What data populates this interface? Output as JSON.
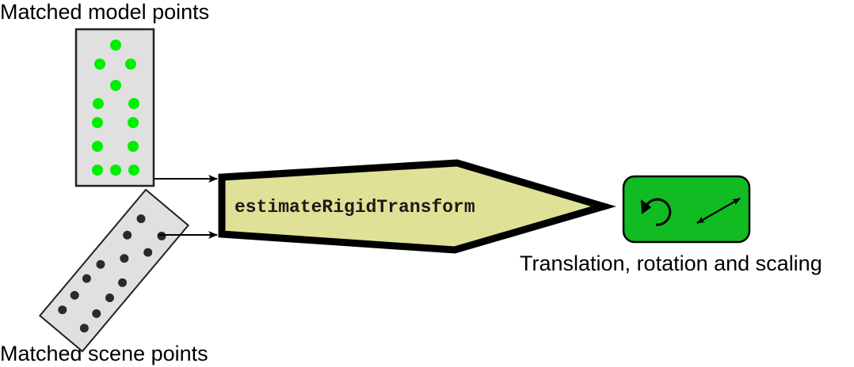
{
  "labels": {
    "model_points": "Matched model points",
    "scene_points": "Matched scene points",
    "function_name": "estimateRigidTransform",
    "output": "Translation, rotation and scaling"
  },
  "colors": {
    "model_dot": "#00ee00",
    "scene_dot": "#2a2a2a",
    "panel_fill": "#e0e0e0",
    "function_fill": "#dfe196",
    "output_fill": "#11bb22"
  },
  "icons": {
    "model_panel": "model-points-panel",
    "scene_panel": "scene-points-panel",
    "rotation": "rotation-icon",
    "scaling": "scaling-arrows-icon"
  }
}
